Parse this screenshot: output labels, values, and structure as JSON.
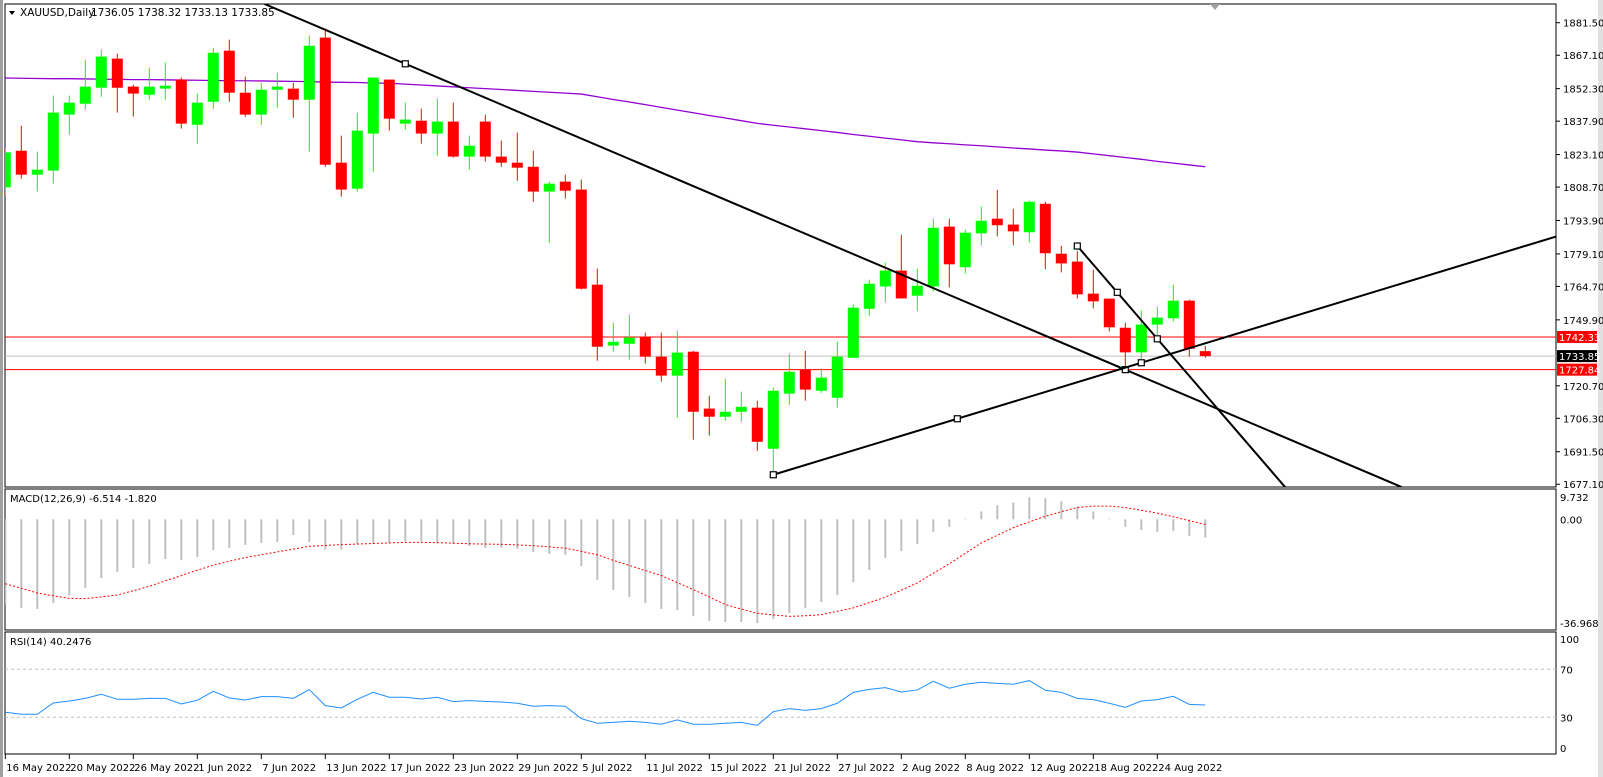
{
  "header": {
    "symbol": "XAUUSD,Daily",
    "ohlc": "1736.05 1738.32 1733.13 1733.85"
  },
  "chart_data": {
    "type": "candlestick",
    "symbol": "XAUUSD",
    "timeframe": "Daily",
    "colors": {
      "bull": "#00ff00",
      "bear": "#ff0000",
      "ma": "#9400d3",
      "trendline": "#000000",
      "macd_hist": "#c0c0c0",
      "macd_signal": "#ff0000",
      "rsi": "#1e90ff",
      "level": "#c0c0c0"
    },
    "price_axis": {
      "range": [
        1676.9,
        1889.8
      ],
      "ticks": [
        {
          "value": 1881.5,
          "label": "1881.50"
        },
        {
          "value": 1867.1,
          "label": "1867.10"
        },
        {
          "value": 1852.3,
          "label": "1852.30"
        },
        {
          "value": 1837.9,
          "label": "1837.90"
        },
        {
          "value": 1823.1,
          "label": "1823.10"
        },
        {
          "value": 1808.7,
          "label": "1808.70"
        },
        {
          "value": 1793.9,
          "label": "1793.90"
        },
        {
          "value": 1779.1,
          "label": "1779.10"
        },
        {
          "value": 1764.7,
          "label": "1764.70"
        },
        {
          "value": 1749.9,
          "label": "1749.90"
        },
        {
          "value": 1720.7,
          "label": "1720.70"
        },
        {
          "value": 1706.3,
          "label": "1706.30"
        },
        {
          "value": 1691.5,
          "label": "1691.50"
        },
        {
          "value": 1677.1,
          "label": "1677.10"
        }
      ]
    },
    "candles_format": "open,high,low,close",
    "candles": [
      [
        1808.6,
        1826.0,
        1805.0,
        1824.1
      ],
      [
        1824.8,
        1835.9,
        1812.4,
        1814.2
      ],
      [
        1814.2,
        1824.4,
        1806.7,
        1816.4
      ],
      [
        1816.0,
        1849.2,
        1810.2,
        1841.7
      ],
      [
        1840.8,
        1849.2,
        1831.9,
        1846.1
      ],
      [
        1845.6,
        1865.1,
        1843.0,
        1853.2
      ],
      [
        1852.7,
        1869.6,
        1848.7,
        1866.5
      ],
      [
        1865.6,
        1867.8,
        1841.7,
        1852.7
      ],
      [
        1853.2,
        1854.0,
        1839.9,
        1850.1
      ],
      [
        1849.6,
        1861.6,
        1847.4,
        1853.2
      ],
      [
        1852.3,
        1863.8,
        1847.4,
        1853.6
      ],
      [
        1856.3,
        1857.2,
        1834.6,
        1836.8
      ],
      [
        1836.3,
        1850.1,
        1827.9,
        1846.1
      ],
      [
        1846.5,
        1870.4,
        1843.4,
        1868.2
      ],
      [
        1869.1,
        1874.0,
        1846.5,
        1850.5
      ],
      [
        1850.5,
        1857.6,
        1839.9,
        1840.8
      ],
      [
        1840.8,
        1854.9,
        1836.3,
        1851.8
      ],
      [
        1851.8,
        1859.4,
        1843.9,
        1853.2
      ],
      [
        1852.3,
        1854.9,
        1839.4,
        1847.4
      ],
      [
        1847.4,
        1875.8,
        1824.4,
        1871.3
      ],
      [
        1874.9,
        1878.9,
        1817.7,
        1818.6
      ],
      [
        1819.5,
        1831.5,
        1804.5,
        1807.6
      ],
      [
        1808.0,
        1841.7,
        1806.7,
        1833.7
      ],
      [
        1832.4,
        1857.2,
        1815.5,
        1857.2
      ],
      [
        1856.3,
        1856.3,
        1833.7,
        1839.0
      ],
      [
        1836.8,
        1846.1,
        1834.1,
        1838.6
      ],
      [
        1838.1,
        1843.4,
        1827.9,
        1832.4
      ],
      [
        1832.4,
        1847.9,
        1822.6,
        1837.7
      ],
      [
        1837.7,
        1846.1,
        1821.7,
        1822.2
      ],
      [
        1822.2,
        1831.5,
        1816.4,
        1827.0
      ],
      [
        1837.7,
        1840.8,
        1820.0,
        1822.2
      ],
      [
        1822.2,
        1829.3,
        1817.7,
        1819.5
      ],
      [
        1819.5,
        1832.8,
        1811.5,
        1817.3
      ],
      [
        1817.7,
        1824.8,
        1802.2,
        1806.7
      ],
      [
        1806.7,
        1811.1,
        1784.1,
        1810.2
      ],
      [
        1811.1,
        1814.2,
        1803.6,
        1807.1
      ],
      [
        1807.6,
        1812.0,
        1763.3,
        1763.7
      ],
      [
        1765.5,
        1772.6,
        1731.8,
        1738.0
      ],
      [
        1738.5,
        1748.6,
        1735.8,
        1740.2
      ],
      [
        1739.3,
        1752.2,
        1732.3,
        1742.0
      ],
      [
        1742.4,
        1744.2,
        1730.5,
        1733.6
      ],
      [
        1733.6,
        1744.2,
        1722.5,
        1725.2
      ],
      [
        1725.2,
        1745.1,
        1706.6,
        1735.4
      ],
      [
        1735.8,
        1736.2,
        1696.8,
        1709.2
      ],
      [
        1710.6,
        1716.3,
        1698.6,
        1707.0
      ],
      [
        1707.0,
        1723.8,
        1705.2,
        1709.2
      ],
      [
        1709.2,
        1718.1,
        1704.8,
        1711.4
      ],
      [
        1711.0,
        1714.1,
        1691.9,
        1695.9
      ],
      [
        1692.8,
        1719.9,
        1681.3,
        1718.5
      ],
      [
        1717.2,
        1734.9,
        1712.3,
        1726.9
      ],
      [
        1727.8,
        1736.2,
        1714.1,
        1719.0
      ],
      [
        1718.5,
        1728.3,
        1717.6,
        1724.3
      ],
      [
        1715.4,
        1740.2,
        1711.0,
        1733.6
      ],
      [
        1733.1,
        1756.6,
        1733.1,
        1755.3
      ],
      [
        1754.8,
        1767.7,
        1751.7,
        1765.9
      ],
      [
        1764.7,
        1775.2,
        1757.6,
        1771.7
      ],
      [
        1771.7,
        1787.6,
        1759.4,
        1759.4
      ],
      [
        1760.6,
        1772.6,
        1753.7,
        1765.0
      ],
      [
        1764.7,
        1794.7,
        1762.5,
        1790.7
      ],
      [
        1791.2,
        1794.7,
        1764.3,
        1774.5
      ],
      [
        1773.2,
        1789.8,
        1770.5,
        1788.5
      ],
      [
        1788.2,
        1800.0,
        1782.9,
        1793.8
      ],
      [
        1794.7,
        1807.5,
        1786.9,
        1791.8
      ],
      [
        1792.1,
        1799.1,
        1782.9,
        1789.1
      ],
      [
        1788.7,
        1802.7,
        1784.2,
        1802.2
      ],
      [
        1801.3,
        1802.2,
        1772.3,
        1779.4
      ],
      [
        1779.2,
        1782.7,
        1770.9,
        1774.9
      ],
      [
        1775.7,
        1780.5,
        1759.4,
        1761.2
      ],
      [
        1761.5,
        1772.1,
        1755.0,
        1758.1
      ],
      [
        1759.3,
        1759.3,
        1744.8,
        1746.6
      ],
      [
        1746.4,
        1748.6,
        1727.84,
        1735.5
      ],
      [
        1735.5,
        1754.0,
        1731.1,
        1747.8
      ],
      [
        1747.8,
        1755.7,
        1742.2,
        1750.9
      ],
      [
        1750.6,
        1765.5,
        1749.2,
        1758.4
      ],
      [
        1758.4,
        1758.8,
        1733.6,
        1737.1
      ],
      [
        1736.05,
        1738.32,
        1733.13,
        1733.85
      ]
    ],
    "moving_average": [
      1857.0,
      1856.9,
      1856.8,
      1856.7,
      1856.7,
      1856.6,
      1856.5,
      1856.4,
      1856.3,
      1856.3,
      1856.2,
      1856.1,
      1856.0,
      1855.9,
      1855.8,
      1855.8,
      1855.7,
      1855.6,
      1855.5,
      1855.4,
      1855.2,
      1855.1,
      1855.0,
      1854.8,
      1854.7,
      1854.3,
      1853.9,
      1853.5,
      1853.1,
      1852.7,
      1852.3,
      1851.9,
      1851.5,
      1851.1,
      1850.7,
      1850.3,
      1849.9,
      1848.7,
      1847.5,
      1846.4,
      1845.2,
      1844.0,
      1842.8,
      1841.6,
      1840.4,
      1839.3,
      1838.1,
      1836.9,
      1836.1,
      1835.3,
      1834.5,
      1833.7,
      1832.9,
      1832.0,
      1831.2,
      1830.4,
      1829.6,
      1828.8,
      1828.3,
      1827.9,
      1827.4,
      1827.0,
      1826.5,
      1826.0,
      1825.6,
      1825.1,
      1824.7,
      1824.2,
      1823.4,
      1822.6,
      1821.8,
      1821.0,
      1820.1,
      1819.3,
      1818.5,
      1817.7
    ],
    "horizontal_lines": [
      {
        "price": 1742.33,
        "label": "1742.33",
        "color": "#ff0000",
        "label_bg": "#ff0000"
      },
      {
        "price": 1733.85,
        "label": "1733.85",
        "color": "#c0c0c0",
        "label_bg": "#000000"
      },
      {
        "price": 1727.84,
        "label": "1727.84",
        "color": "#ff0000",
        "label_bg": "#ff0000"
      }
    ],
    "trendlines": [
      {
        "points": [
          [
            25,
            1863.3
          ],
          [
            70,
            1727.84
          ]
        ],
        "extend": "both",
        "anchors": [
          [
            25,
            1863.3
          ],
          [
            70,
            1727.84
          ]
        ]
      },
      {
        "points": [
          [
            48,
            1681.3
          ],
          [
            71,
            1730.9
          ]
        ],
        "extend": "end",
        "anchors": [
          [
            48,
            1681.3
          ],
          [
            59.5,
            1706.1
          ],
          [
            71,
            1730.9
          ]
        ]
      },
      {
        "points": [
          [
            67,
            1782.6
          ],
          [
            72,
            1741.5
          ]
        ],
        "extend": "end",
        "anchors": [
          [
            67,
            1782.6
          ],
          [
            69.5,
            1762.1
          ],
          [
            72,
            1741.5
          ]
        ]
      }
    ],
    "x_labels": [
      {
        "index": 0,
        "label": "16 May 2022"
      },
      {
        "index": 4,
        "label": "20 May 2022"
      },
      {
        "index": 8,
        "label": "26 May 2022"
      },
      {
        "index": 12,
        "label": "1 Jun 2022"
      },
      {
        "index": 16,
        "label": "7 Jun 2022"
      },
      {
        "index": 20,
        "label": "13 Jun 2022"
      },
      {
        "index": 24,
        "label": "17 Jun 2022"
      },
      {
        "index": 28,
        "label": "23 Jun 2022"
      },
      {
        "index": 32,
        "label": "29 Jun 2022"
      },
      {
        "index": 36,
        "label": "5 Jul 2022"
      },
      {
        "index": 40,
        "label": "11 Jul 2022"
      },
      {
        "index": 44,
        "label": "15 Jul 2022"
      },
      {
        "index": 48,
        "label": "21 Jul 2022"
      },
      {
        "index": 52,
        "label": "27 Jul 2022"
      },
      {
        "index": 56,
        "label": "2 Aug 2022"
      },
      {
        "index": 60,
        "label": "8 Aug 2022"
      },
      {
        "index": 64,
        "label": "12 Aug 2022"
      },
      {
        "index": 68,
        "label": "18 Aug 2022"
      },
      {
        "index": 72,
        "label": "24 Aug 2022"
      }
    ],
    "macd": {
      "title": "MACD(12,26,9) -6.514 -1.820",
      "range": [
        -36.968,
        9.732
      ],
      "ticks": [
        {
          "value": 9.732,
          "label": "9.732"
        },
        {
          "value": 0,
          "label": "0.00"
        },
        {
          "value": -36.968,
          "label": "-36.968"
        }
      ],
      "histogram": [
        -30.3,
        -31.5,
        -31.9,
        -29.7,
        -27.1,
        -24.4,
        -20.9,
        -18.7,
        -17.3,
        -15.9,
        -14.1,
        -14.5,
        -13.4,
        -11.0,
        -10.2,
        -9.1,
        -8.4,
        -8.1,
        -5.6,
        -8.1,
        -10.8,
        -10.8,
        -9.0,
        -8.7,
        -8.5,
        -7.9,
        -7.9,
        -8.5,
        -8.8,
        -9.5,
        -10.2,
        -10.1,
        -10.5,
        -11.6,
        -12.3,
        -12.6,
        -16.7,
        -21.6,
        -25.1,
        -27.6,
        -29.7,
        -31.9,
        -32.3,
        -34.4,
        -36.1,
        -36.5,
        -36.5,
        -36.9,
        -35.4,
        -33.3,
        -31.5,
        -29.4,
        -26.9,
        -22.4,
        -18.0,
        -13.7,
        -11.3,
        -8.8,
        -4.5,
        -2.7,
        0.2,
        2.8,
        5.0,
        6.0,
        7.8,
        7.5,
        6.4,
        4.6,
        2.8,
        0.2,
        -2.7,
        -3.8,
        -4.5,
        -4.1,
        -5.9,
        -6.514
      ],
      "signal": [
        -22.9,
        -24.5,
        -26.2,
        -27.2,
        -28.1,
        -28.2,
        -27.6,
        -26.9,
        -25.4,
        -23.8,
        -21.9,
        -20.0,
        -18.1,
        -16.3,
        -14.9,
        -13.6,
        -12.6,
        -11.6,
        -10.6,
        -9.6,
        -9.3,
        -9.0,
        -8.8,
        -8.6,
        -8.4,
        -8.2,
        -8.2,
        -8.3,
        -8.5,
        -8.7,
        -8.8,
        -8.9,
        -9.1,
        -9.4,
        -9.8,
        -10.3,
        -11.4,
        -12.6,
        -14.6,
        -16.4,
        -18.2,
        -20.0,
        -22.5,
        -25.0,
        -27.6,
        -30.3,
        -31.9,
        -33.4,
        -34.0,
        -34.5,
        -34.3,
        -33.9,
        -32.7,
        -31.5,
        -29.6,
        -27.7,
        -25.2,
        -22.6,
        -19.2,
        -15.8,
        -12.1,
        -8.4,
        -5.7,
        -3.0,
        -0.9,
        1.1,
        2.7,
        4.2,
        4.7,
        4.7,
        4.2,
        3.2,
        2.2,
        0.9,
        -0.5,
        -1.82
      ]
    },
    "rsi": {
      "title": "RSI(14) 40.2476",
      "range": [
        0,
        100
      ],
      "levels": [
        70,
        30
      ],
      "ticks": [
        {
          "value": 100,
          "label": "100"
        },
        {
          "value": 70,
          "label": "70"
        },
        {
          "value": 30,
          "label": "30"
        },
        {
          "value": 0,
          "label": "0"
        }
      ],
      "values": [
        34.2,
        32.5,
        32.5,
        41.9,
        43.6,
        45.8,
        49.2,
        45.0,
        45.0,
        45.8,
        45.8,
        41.1,
        44.2,
        51.7,
        46.1,
        44.4,
        47.2,
        47.2,
        45.8,
        53.1,
        39.7,
        37.8,
        45.0,
        50.8,
        46.7,
        46.7,
        45.3,
        46.7,
        43.1,
        43.9,
        43.3,
        42.8,
        41.7,
        39.2,
        39.7,
        39.2,
        28.9,
        25.0,
        25.8,
        26.7,
        25.8,
        24.2,
        27.8,
        24.2,
        24.2,
        25.0,
        25.8,
        23.3,
        34.7,
        37.2,
        35.8,
        37.2,
        41.7,
        50.8,
        53.3,
        54.7,
        51.1,
        52.8,
        60.0,
        54.2,
        57.5,
        59.2,
        58.3,
        57.5,
        60.6,
        52.5,
        50.8,
        45.8,
        44.7,
        41.7,
        38.3,
        43.6,
        44.7,
        47.5,
        40.8,
        40.2476
      ]
    }
  }
}
